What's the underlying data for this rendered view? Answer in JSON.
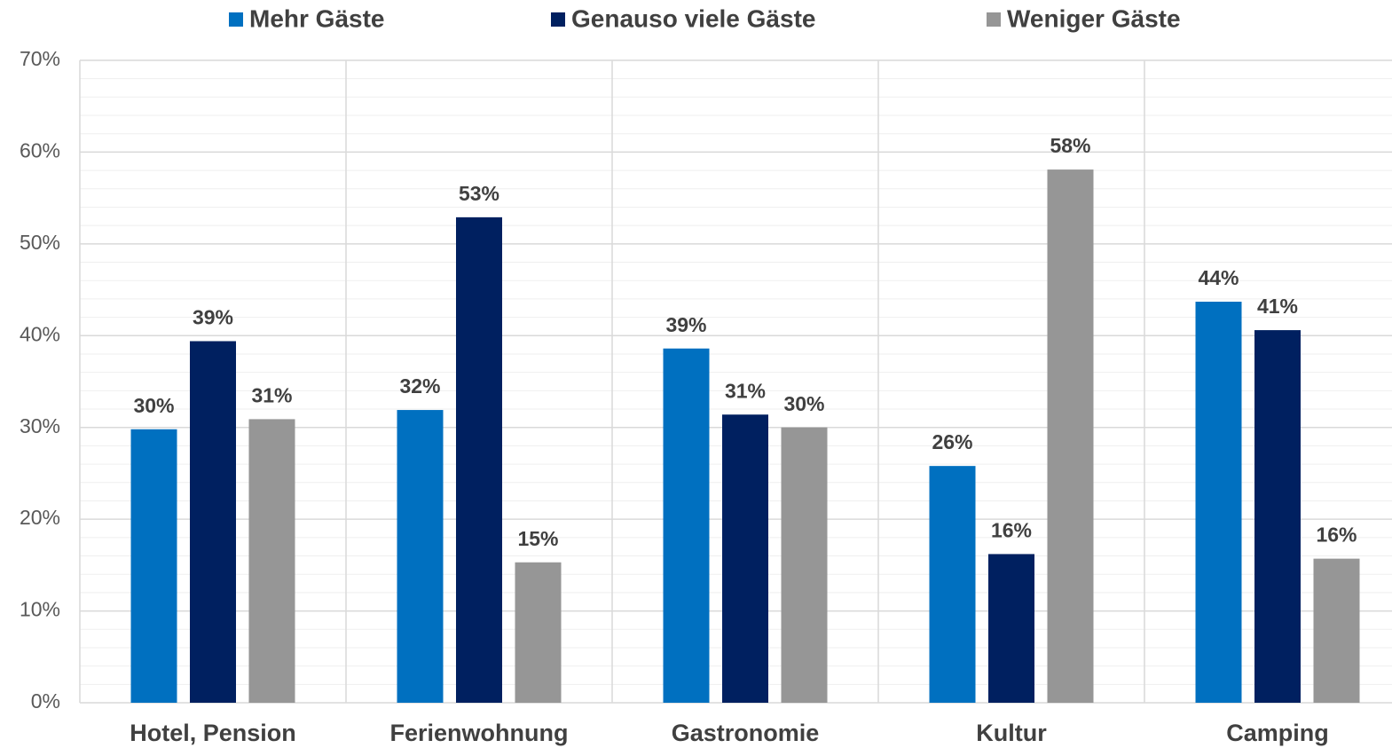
{
  "chart_data": {
    "type": "bar",
    "categories": [
      "Hotel, Pension",
      "Ferienwohnung",
      "Gastronomie",
      "Kultur",
      "Camping"
    ],
    "series": [
      {
        "name": "Mehr Gäste",
        "color": "#0070c0",
        "values": [
          29.8,
          31.9,
          38.6,
          25.8,
          43.7
        ],
        "value_labels": [
          "30%",
          "32%",
          "39%",
          "26%",
          "44%"
        ]
      },
      {
        "name": "Genauso viele Gäste",
        "color": "#002060",
        "values": [
          39.4,
          52.9,
          31.4,
          16.2,
          40.6
        ],
        "value_labels": [
          "39%",
          "53%",
          "31%",
          "16%",
          "41%"
        ]
      },
      {
        "name": "Weniger Gäste",
        "color": "#969696",
        "values": [
          30.9,
          15.3,
          30.0,
          58.1,
          15.7
        ],
        "value_labels": [
          "31%",
          "15%",
          "30%",
          "58%",
          "16%"
        ]
      }
    ],
    "ylim": [
      0,
      70
    ],
    "yticks": [
      {
        "value": 0,
        "label": "0%"
      },
      {
        "value": 10,
        "label": "10%"
      },
      {
        "value": 20,
        "label": "20%"
      },
      {
        "value": 30,
        "label": "30%"
      },
      {
        "value": 40,
        "label": "40%"
      },
      {
        "value": 50,
        "label": "50%"
      },
      {
        "value": 60,
        "label": "60%"
      },
      {
        "value": 70,
        "label": "70%"
      }
    ],
    "minor_yticks": [
      2,
      4,
      6,
      8,
      12,
      14,
      16,
      18,
      22,
      24,
      26,
      28,
      32,
      34,
      36,
      38,
      42,
      44,
      46,
      48,
      52,
      54,
      56,
      58,
      62,
      64,
      66,
      68
    ],
    "grid": true,
    "legend": "top"
  }
}
